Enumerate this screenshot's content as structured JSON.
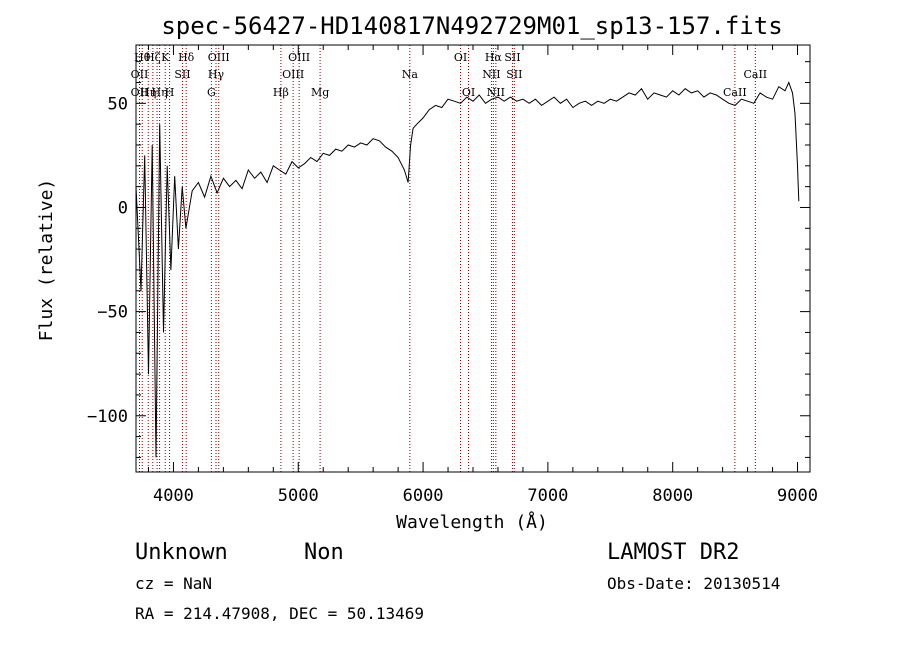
{
  "chart_data": {
    "type": "line",
    "title": "spec-56427-HD140817N492729M01_sp13-157.fits",
    "xlabel": "Wavelength (Å)",
    "ylabel": "Flux (relative)",
    "xlim": [
      3700,
      9100
    ],
    "ylim": [
      -127,
      78
    ],
    "xticks": [
      4000,
      5000,
      6000,
      7000,
      8000,
      9000
    ],
    "xtick_labels": [
      "4000",
      "5000",
      "6000",
      "7000",
      "8000",
      "9000"
    ],
    "yticks": [
      -100,
      -50,
      0,
      50
    ],
    "ytick_labels": [
      "−100",
      "−50",
      "0",
      "50"
    ],
    "grid": false,
    "series": [
      {
        "x": [
          3700,
          3740,
          3770,
          3800,
          3830,
          3860,
          3890,
          3920,
          3950,
          3980,
          4010,
          4040,
          4070,
          4100,
          4150,
          4200,
          4250,
          4300,
          4350,
          4400,
          4450,
          4500,
          4550,
          4600,
          4650,
          4700,
          4750,
          4800,
          4850,
          4900,
          4950,
          5000,
          5050,
          5100,
          5150,
          5200,
          5250,
          5300,
          5350,
          5400,
          5450,
          5500,
          5550,
          5600,
          5650,
          5700,
          5750,
          5800,
          5850,
          5880,
          5900,
          5920,
          5950,
          6000,
          6050,
          6100,
          6150,
          6200,
          6250,
          6300,
          6350,
          6400,
          6450,
          6500,
          6550,
          6600,
          6650,
          6700,
          6750,
          6800,
          6850,
          6900,
          6950,
          7000,
          7050,
          7100,
          7150,
          7200,
          7250,
          7300,
          7350,
          7400,
          7450,
          7500,
          7550,
          7600,
          7650,
          7700,
          7750,
          7800,
          7850,
          7900,
          7950,
          8000,
          8050,
          8100,
          8150,
          8200,
          8250,
          8300,
          8350,
          8400,
          8450,
          8500,
          8550,
          8600,
          8650,
          8700,
          8750,
          8800,
          8850,
          8900,
          8930,
          8960,
          8980,
          9000,
          9010
        ],
        "y": [
          10,
          -40,
          25,
          -80,
          30,
          -120,
          40,
          -60,
          20,
          -30,
          15,
          -20,
          10,
          -10,
          8,
          12,
          5,
          15,
          7,
          14,
          10,
          13,
          9,
          18,
          14,
          17,
          12,
          20,
          18,
          16,
          22,
          19,
          21,
          24,
          22,
          26,
          25,
          28,
          27,
          30,
          29,
          31,
          30,
          33,
          32,
          29,
          27,
          24,
          18,
          12,
          30,
          38,
          40,
          43,
          47,
          49,
          48,
          52,
          51,
          50,
          53,
          51,
          54,
          50,
          52,
          53,
          51,
          53,
          51,
          52,
          50,
          52,
          49,
          51,
          53,
          50,
          52,
          48,
          50,
          51,
          49,
          51,
          50,
          52,
          51,
          53,
          55,
          54,
          57,
          52,
          55,
          54,
          53,
          56,
          54,
          57,
          55,
          56,
          53,
          55,
          54,
          52,
          50,
          49,
          52,
          51,
          50,
          55,
          53,
          52,
          58,
          56,
          60,
          55,
          45,
          20,
          3
        ]
      }
    ],
    "lines": [
      {
        "x": 3728,
        "labels": [
          "",
          "OII",
          "OII"
        ]
      },
      {
        "x": 3750,
        "labels": [
          "Hθ",
          "",
          ""
        ]
      },
      {
        "x": 3798,
        "labels": [
          "",
          "",
          "Hη"
        ]
      },
      {
        "x": 3835,
        "labels": [
          "Hζ",
          "",
          ""
        ]
      },
      {
        "x": 3869,
        "labels": [
          "",
          "",
          ""
        ]
      },
      {
        "x": 3889,
        "labels": [
          "",
          "",
          "Hη"
        ]
      },
      {
        "x": 3934,
        "labels": [
          "K",
          "",
          ""
        ]
      },
      {
        "x": 3969,
        "labels": [
          "",
          "",
          "H"
        ]
      },
      {
        "x": 4072,
        "labels": [
          "",
          "SII",
          ""
        ]
      },
      {
        "x": 4102,
        "labels": [
          "Hδ",
          "",
          ""
        ]
      },
      {
        "x": 4304,
        "labels": [
          "",
          "",
          "G"
        ]
      },
      {
        "x": 4341,
        "labels": [
          "",
          "Hγ",
          ""
        ]
      },
      {
        "x": 4363,
        "labels": [
          "OIII",
          "",
          ""
        ]
      },
      {
        "x": 4861,
        "labels": [
          "",
          "",
          "Hβ"
        ]
      },
      {
        "x": 4959,
        "labels": [
          "",
          "OIII",
          ""
        ]
      },
      {
        "x": 5007,
        "labels": [
          "OIII",
          "",
          ""
        ]
      },
      {
        "x": 5175,
        "labels": [
          "",
          "",
          "Mg"
        ]
      },
      {
        "x": 5894,
        "labels": [
          "",
          "Na",
          ""
        ]
      },
      {
        "x": 6300,
        "labels": [
          "OI",
          "",
          ""
        ]
      },
      {
        "x": 6364,
        "labels": [
          "",
          "",
          "OI"
        ]
      },
      {
        "x": 6548,
        "labels": [
          "",
          "NII",
          ""
        ]
      },
      {
        "x": 6563,
        "labels": [
          "Hα",
          "",
          ""
        ]
      },
      {
        "x": 6583,
        "labels": [
          "",
          "",
          "NII"
        ]
      },
      {
        "x": 6716,
        "labels": [
          "SII",
          "",
          ""
        ]
      },
      {
        "x": 6731,
        "labels": [
          "",
          "SII",
          ""
        ]
      },
      {
        "x": 8498,
        "labels": [
          "",
          "",
          "CaII"
        ]
      },
      {
        "x": 8662,
        "labels": [
          "",
          "CaII",
          ""
        ]
      }
    ]
  },
  "info": {
    "class": "Unknown",
    "subclass": "Non",
    "cz": "cz = NaN",
    "radec": "RA = 214.47908, DEC =  50.13469",
    "survey": "LAMOST DR2",
    "obsdate": "Obs-Date: 20130514"
  }
}
